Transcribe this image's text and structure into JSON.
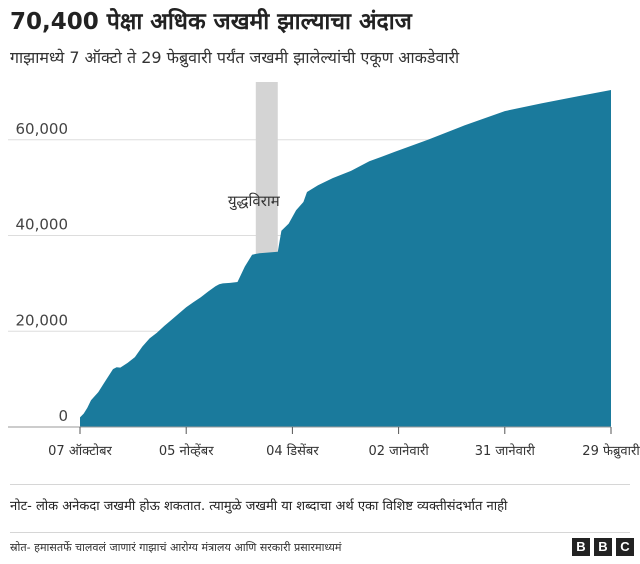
{
  "title": "70,400 पेक्षा अधिक जखमी झाल्याचा अंदाज",
  "subtitle": "गाझामध्ये 7 ऑक्टो ते 29 फेब्रुवारी पर्यंत जखमी झालेल्यांची एकूण आकडेवारी",
  "note": "नोट- लोक अनेकदा जखमी होऊ शकतात. त्यामुळे जखमी या शब्दाचा अर्थ एका विशिष्ट व्यक्तीसंदर्भात नाही",
  "source": "स्रोत- हमासतर्फे चालवलं जाणारं गाझाचं आरोग्य मंत्रालय आणि सरकारी प्रसारमाध्यमं",
  "logo": [
    "B",
    "B",
    "C"
  ],
  "colors": {
    "area": "#1a7a9c",
    "truce": "#d4d4d4",
    "grid": "#dddddd",
    "text": "#222222"
  },
  "chart_data": {
    "type": "area",
    "title": "70,400 पेक्षा अधिक जखमी झाल्याचा अंदाज",
    "x_unit": "date",
    "x_range": [
      "2023-10-07",
      "2024-02-29"
    ],
    "ylim": [
      0,
      70400
    ],
    "y_ticks": [
      {
        "value": 0,
        "label": "0"
      },
      {
        "value": 20000,
        "label": "20,000"
      },
      {
        "value": 40000,
        "label": "40,000"
      },
      {
        "value": 60000,
        "label": "60,000"
      }
    ],
    "x_ticks": [
      {
        "date": "2023-10-07",
        "label": "07 ऑक्टोबर"
      },
      {
        "date": "2023-11-05",
        "label": "05 नोव्हेंबर"
      },
      {
        "date": "2023-12-04",
        "label": "04 डिसेंबर"
      },
      {
        "date": "2024-01-02",
        "label": "02 जानेवारी"
      },
      {
        "date": "2024-01-31",
        "label": "31 जानेवारी"
      },
      {
        "date": "2024-02-29",
        "label": "29 फेब्रुवारी"
      }
    ],
    "annotation": {
      "label": "युद्धविराम",
      "start": "2023-11-24",
      "end": "2023-11-30"
    },
    "grid": true,
    "series": [
      {
        "points": [
          [
            "2023-10-07",
            2000
          ],
          [
            "2023-10-08",
            2800
          ],
          [
            "2023-10-09",
            4000
          ],
          [
            "2023-10-10",
            5600
          ],
          [
            "2023-10-12",
            7300
          ],
          [
            "2023-10-14",
            9700
          ],
          [
            "2023-10-16",
            12100
          ],
          [
            "2023-10-17",
            12500
          ],
          [
            "2023-10-18",
            12400
          ],
          [
            "2023-10-20",
            13400
          ],
          [
            "2023-10-22",
            14600
          ],
          [
            "2023-10-24",
            16800
          ],
          [
            "2023-10-26",
            18500
          ],
          [
            "2023-10-28",
            19700
          ],
          [
            "2023-10-30",
            21100
          ],
          [
            "2023-11-01",
            22400
          ],
          [
            "2023-11-03",
            23700
          ],
          [
            "2023-11-05",
            25000
          ],
          [
            "2023-11-07",
            26100
          ],
          [
            "2023-11-09",
            27100
          ],
          [
            "2023-11-11",
            28300
          ],
          [
            "2023-11-13",
            29400
          ],
          [
            "2023-11-14",
            29800
          ],
          [
            "2023-11-15",
            30000
          ],
          [
            "2023-11-17",
            30100
          ],
          [
            "2023-11-19",
            30300
          ],
          [
            "2023-11-21",
            33500
          ],
          [
            "2023-11-23",
            36000
          ],
          [
            "2023-11-25",
            36300
          ],
          [
            "2023-11-30",
            36600
          ],
          [
            "2023-12-01",
            41000
          ],
          [
            "2023-12-03",
            42500
          ],
          [
            "2023-12-05",
            45300
          ],
          [
            "2023-12-07",
            47000
          ],
          [
            "2023-12-08",
            49100
          ],
          [
            "2023-12-11",
            50500
          ],
          [
            "2023-12-15",
            52000
          ],
          [
            "2023-12-20",
            53500
          ],
          [
            "2023-12-25",
            55500
          ],
          [
            "2024-01-01",
            57500
          ],
          [
            "2024-01-10",
            60000
          ],
          [
            "2024-01-20",
            63000
          ],
          [
            "2024-01-31",
            66000
          ],
          [
            "2024-02-10",
            67600
          ],
          [
            "2024-02-20",
            69100
          ],
          [
            "2024-02-29",
            70400
          ]
        ]
      }
    ]
  }
}
